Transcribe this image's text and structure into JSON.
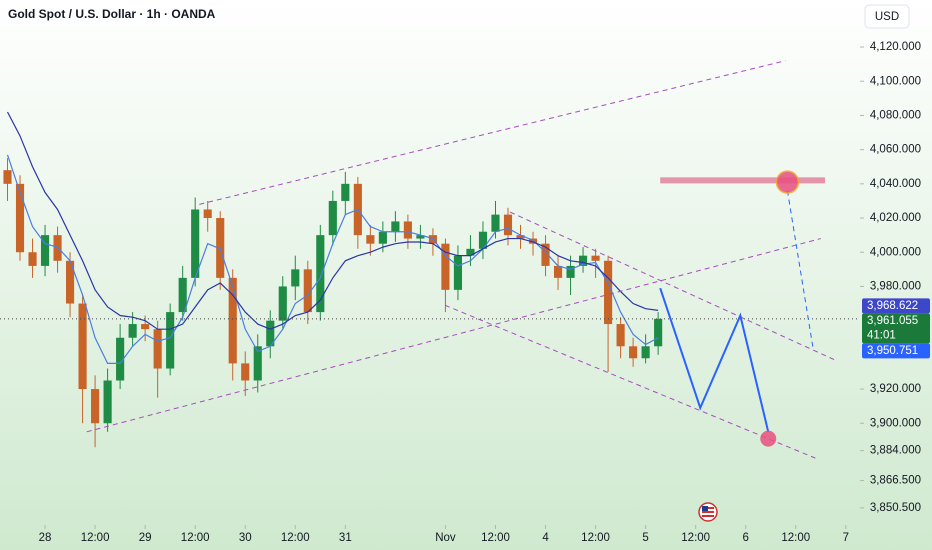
{
  "chart_data": {
    "type": "candlestick",
    "title": "Gold Spot / U.S. Dollar · 1h · OANDA",
    "currency": "USD",
    "up_color": "#1e8c45",
    "down_color": "#c86428",
    "x": [
      -9,
      -6,
      -3,
      0,
      3,
      6,
      9,
      12,
      15,
      18,
      21,
      24,
      27,
      30,
      33,
      36,
      39,
      42,
      45,
      48,
      51,
      54,
      57,
      60,
      63,
      66,
      69,
      72,
      75,
      78,
      81,
      84,
      87,
      90,
      93,
      96,
      99,
      102,
      105,
      108,
      111,
      114,
      117,
      120,
      123,
      126,
      129,
      132,
      135,
      138,
      141,
      144,
      147
    ],
    "open": [
      4048,
      4040,
      4000,
      3992,
      4010,
      3995,
      3970,
      3920,
      3900,
      3925,
      3950,
      3958,
      3955,
      3932,
      3965,
      3985,
      4025,
      4020,
      3985,
      3935,
      3925,
      3945,
      3960,
      3980,
      3990,
      3965,
      4010,
      4030,
      4040,
      4010,
      4005,
      4012,
      4018,
      4008,
      4010,
      4005,
      3978,
      3998,
      4002,
      4012,
      4022,
      4010,
      4008,
      4005,
      3992,
      3985,
      3992,
      3998,
      3995,
      3958,
      3945,
      3938,
      3945
    ],
    "high": [
      4055,
      4045,
      4008,
      4016,
      4015,
      4000,
      3975,
      3928,
      3932,
      3958,
      3965,
      3963,
      3960,
      3970,
      3992,
      4032,
      4030,
      4024,
      3990,
      3942,
      3952,
      3966,
      3986,
      3998,
      3995,
      4016,
      4036,
      4047,
      4044,
      4016,
      4018,
      4024,
      4022,
      4016,
      4014,
      4008,
      4004,
      4010,
      4018,
      4030,
      4026,
      4016,
      4012,
      4010,
      3998,
      3998,
      4003,
      4002,
      3998,
      3962,
      3950,
      3952,
      3965
    ],
    "low": [
      4030,
      3995,
      3985,
      3986,
      3988,
      3962,
      3900,
      3886,
      3895,
      3920,
      3945,
      3948,
      3915,
      3928,
      3960,
      3980,
      4012,
      3978,
      3925,
      3916,
      3918,
      3938,
      3955,
      3972,
      3958,
      3960,
      4004,
      4022,
      4002,
      3998,
      4000,
      4006,
      4002,
      4002,
      3998,
      3965,
      3972,
      3992,
      3996,
      4008,
      4004,
      4002,
      3998,
      3986,
      3978,
      3975,
      3988,
      3985,
      3930,
      3938,
      3933,
      3935,
      3940
    ],
    "close": [
      4040,
      4000,
      3992,
      4010,
      3995,
      3970,
      3920,
      3900,
      3925,
      3950,
      3958,
      3955,
      3932,
      3965,
      3985,
      4025,
      4020,
      3985,
      3935,
      3925,
      3945,
      3960,
      3980,
      3990,
      3965,
      4010,
      4030,
      4040,
      4010,
      4005,
      4012,
      4018,
      4008,
      4010,
      4005,
      3978,
      3998,
      4002,
      4012,
      4022,
      4010,
      4008,
      4005,
      3992,
      3985,
      3992,
      3998,
      3995,
      3958,
      3945,
      3938,
      3945,
      3961.055
    ],
    "overlays": [
      {
        "color": "#4a7fe0",
        "values": [
          4057,
          4035,
          4015,
          4005,
          4003,
          3995,
          3975,
          3950,
          3935,
          3935,
          3945,
          3952,
          3948,
          3950,
          3962,
          3985,
          4005,
          4002,
          3980,
          3955,
          3942,
          3945,
          3955,
          3970,
          3975,
          3985,
          4005,
          4022,
          4025,
          4015,
          4012,
          4012,
          4012,
          4010,
          4008,
          3998,
          3992,
          3995,
          4002,
          4012,
          4014,
          4010,
          4007,
          4000,
          3992,
          3990,
          3993,
          3994,
          3982,
          3965,
          3952,
          3946,
          3950
        ]
      },
      {
        "color": "#2a35a8",
        "values": [
          4082,
          4068,
          4050,
          4035,
          4025,
          4010,
          3995,
          3978,
          3968,
          3963,
          3962,
          3960,
          3955,
          3955,
          3958,
          3968,
          3978,
          3982,
          3975,
          3965,
          3958,
          3955,
          3958,
          3963,
          3965,
          3972,
          3985,
          3995,
          3998,
          4000,
          4003,
          4005,
          4006,
          4006,
          4005,
          4000,
          3998,
          3998,
          4002,
          4006,
          4008,
          4008,
          4006,
          4003,
          3998,
          3995,
          3994,
          3992,
          3985,
          3977,
          3970,
          3967,
          3966
        ]
      }
    ],
    "drawings": [
      {
        "style": "dashed",
        "color": "#a64dbd",
        "x": [
          37,
          177.5
        ],
        "values": [
          4028,
          4112
        ]
      },
      {
        "style": "dashed",
        "color": "#a64dbd",
        "x": [
          10,
          186
        ],
        "values": [
          3895,
          4008
        ]
      },
      {
        "style": "dashed",
        "color": "#a64dbd",
        "x": [
          111.5,
          189.4
        ],
        "values": [
          4023.5,
          3937
        ]
      },
      {
        "style": "dashed",
        "color": "#a64dbd",
        "x": [
          95.9,
          184.7
        ],
        "values": [
          3969,
          3879.6
        ]
      },
      {
        "style": "zone",
        "color": "#e27a96",
        "x": [
          147.5,
          187
        ],
        "values": [
          4042,
          4042
        ]
      },
      {
        "style": "solid",
        "color": "#2962ff",
        "x": [
          147.5,
          157.1,
          166.7,
          173.4
        ],
        "values": [
          3979,
          3909,
          3963,
          3895
        ]
      },
      {
        "style": "dashed",
        "color": "#2962ff",
        "x": [
          178,
          184.2
        ],
        "values": [
          4036,
          3943
        ]
      }
    ],
    "markers": [
      {
        "x": 178,
        "value": 4041,
        "color": "#e8507f"
      },
      {
        "x": 173.4,
        "value": 3891,
        "color": "#e8507f"
      }
    ],
    "price_tags": [
      {
        "value": 3968.622,
        "label": "3,968.622",
        "color": "#3d47c9"
      },
      {
        "value": 3961.055,
        "label": "3,961.055",
        "color": "#1b7a3a",
        "countdown": "41:01"
      },
      {
        "value": 3950.751,
        "label": "3,950.751",
        "color": "#2962ff"
      }
    ],
    "xlim": [
      -10.8,
      195.4
    ],
    "ylim": [
      3840.5,
      4147.5
    ],
    "xticks": [
      {
        "value": 0,
        "label": "28"
      },
      {
        "value": 12,
        "label": "12:00"
      },
      {
        "value": 24,
        "label": "29"
      },
      {
        "value": 36,
        "label": "12:00"
      },
      {
        "value": 48,
        "label": "30"
      },
      {
        "value": 60,
        "label": "12:00"
      },
      {
        "value": 72,
        "label": "31"
      },
      {
        "value": 96,
        "label": "Nov"
      },
      {
        "value": 108,
        "label": "12:00"
      },
      {
        "value": 120,
        "label": "4"
      },
      {
        "value": 132,
        "label": "12:00"
      },
      {
        "value": 144,
        "label": "5"
      },
      {
        "value": 156,
        "label": "12:00"
      },
      {
        "value": 168,
        "label": "6"
      },
      {
        "value": 180,
        "label": "12:00"
      },
      {
        "value": 192,
        "label": "7"
      }
    ],
    "yticks": [
      {
        "value": 4120,
        "label": "4,120.000"
      },
      {
        "value": 4100,
        "label": "4,100.000"
      },
      {
        "value": 4080,
        "label": "4,080.000"
      },
      {
        "value": 4060,
        "label": "4,060.000"
      },
      {
        "value": 4040,
        "label": "4,040.000"
      },
      {
        "value": 4020,
        "label": "4,020.000"
      },
      {
        "value": 4000,
        "label": "4,000.000"
      },
      {
        "value": 3980,
        "label": "3,980.000"
      },
      {
        "value": 3920,
        "label": "3,920.000"
      },
      {
        "value": 3900,
        "label": "3,900.000"
      },
      {
        "value": 3884,
        "label": "3,884.000"
      },
      {
        "value": 3866.5,
        "label": "3,866.500"
      },
      {
        "value": 3850.5,
        "label": "3,850.500"
      }
    ]
  }
}
